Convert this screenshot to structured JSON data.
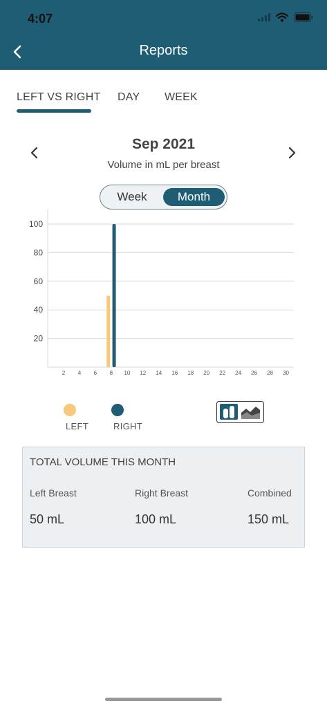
{
  "status_bar": {
    "time": "4:07"
  },
  "header": {
    "title": "Reports",
    "back_icon": "chevron-left-icon"
  },
  "tabs": [
    {
      "label": "LEFT VS RIGHT",
      "active": true
    },
    {
      "label": "DAY",
      "active": false
    },
    {
      "label": "WEEK",
      "active": false
    }
  ],
  "period": {
    "title": "Sep 2021",
    "subtitle": "Volume in mL per breast"
  },
  "range_toggle": {
    "options": [
      "Week",
      "Month"
    ],
    "selected": "Month"
  },
  "colors": {
    "header": "#1e5d73",
    "left": "#f8c97a",
    "right": "#1e5d73"
  },
  "chart_data": {
    "type": "bar",
    "x": [
      8
    ],
    "x_ticks": [
      2,
      4,
      6,
      8,
      10,
      12,
      14,
      16,
      18,
      20,
      22,
      24,
      26,
      28,
      30
    ],
    "y_ticks": [
      20,
      40,
      60,
      80,
      100
    ],
    "xlim": [
      0,
      31
    ],
    "ylim": [
      0,
      100
    ],
    "grid": true,
    "series": [
      {
        "name": "LEFT",
        "values": [
          50
        ],
        "color": "#f8c97a"
      },
      {
        "name": "RIGHT",
        "values": [
          100
        ],
        "color": "#1e5d73"
      }
    ]
  },
  "legend": {
    "left_label": "LEFT",
    "right_label": "RIGHT"
  },
  "chart_type_toggle": {
    "selected": "bar",
    "icons": [
      "bar-chart-icon",
      "area-chart-icon"
    ]
  },
  "summary": {
    "title": "TOTAL VOLUME THIS MONTH",
    "columns": [
      {
        "label": "Left Breast",
        "value": "50 mL"
      },
      {
        "label": "Right Breast",
        "value": "100 mL"
      },
      {
        "label": "Combined",
        "value": "150 mL"
      }
    ]
  }
}
